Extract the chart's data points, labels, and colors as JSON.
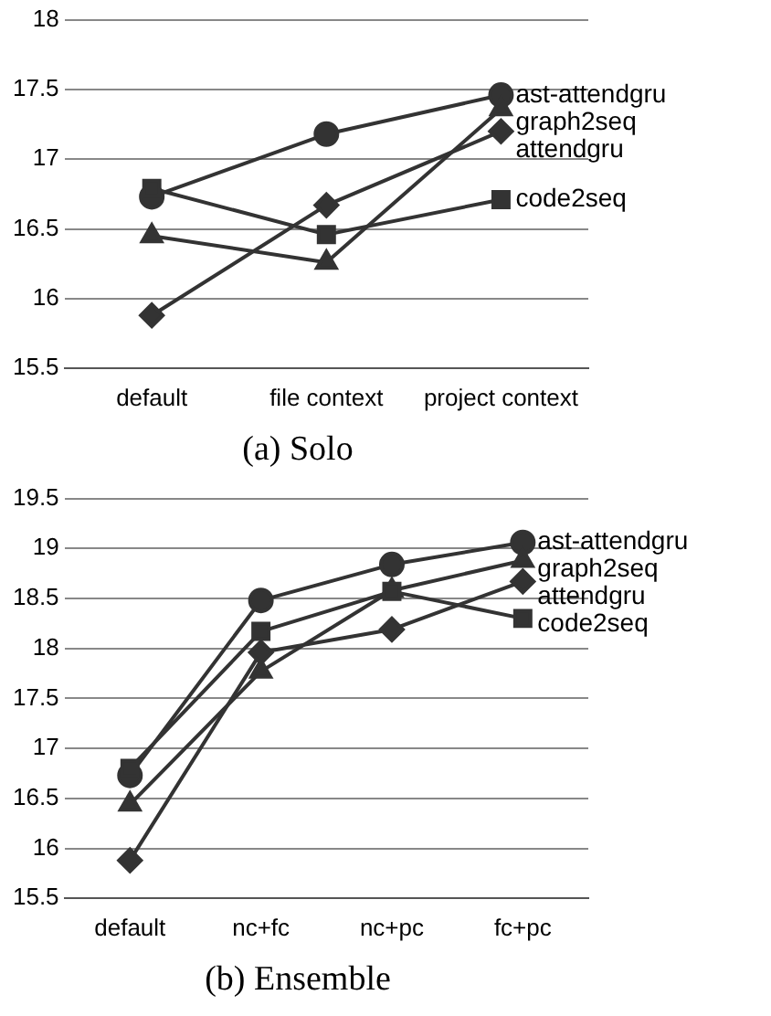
{
  "chart_data": [
    {
      "type": "line",
      "title": "(a) Solo",
      "categories": [
        "default",
        "file context",
        "project context"
      ],
      "ylim": [
        15.5,
        18
      ],
      "yticks": [
        15.5,
        16,
        16.5,
        17,
        17.5,
        18
      ],
      "grid": "y",
      "legend": false,
      "series": [
        {
          "name": "ast-attendgru",
          "color": "#333333",
          "marker": "circle",
          "values": [
            16.73,
            17.18,
            17.46
          ]
        },
        {
          "name": "graph2seq",
          "color": "#333333",
          "marker": "triangle",
          "values": [
            16.45,
            16.26,
            17.36
          ]
        },
        {
          "name": "attendgru",
          "color": "#333333",
          "marker": "diamond",
          "values": [
            15.88,
            16.67,
            17.2
          ]
        },
        {
          "name": "code2seq",
          "color": "#333333",
          "marker": "square",
          "values": [
            16.79,
            16.46,
            16.71
          ]
        }
      ]
    },
    {
      "type": "line",
      "title": "(b) Ensemble",
      "categories": [
        "default",
        "nc+fc",
        "nc+pc",
        "fc+pc"
      ],
      "ylim": [
        15.5,
        19.5
      ],
      "yticks": [
        15.5,
        16,
        16.5,
        17,
        17.5,
        18,
        18.5,
        19,
        19.5
      ],
      "grid": "y",
      "legend": false,
      "series": [
        {
          "name": "ast-attendgru",
          "color": "#333333",
          "marker": "circle",
          "values": [
            16.73,
            18.48,
            18.84,
            19.06
          ]
        },
        {
          "name": "graph2seq",
          "color": "#333333",
          "marker": "triangle",
          "values": [
            16.44,
            17.77,
            18.58,
            18.88
          ]
        },
        {
          "name": "attendgru",
          "color": "#333333",
          "marker": "diamond",
          "values": [
            15.88,
            17.96,
            18.19,
            18.67
          ]
        },
        {
          "name": "code2seq",
          "color": "#333333",
          "marker": "square",
          "values": [
            16.8,
            18.17,
            18.57,
            18.3
          ]
        }
      ]
    }
  ]
}
